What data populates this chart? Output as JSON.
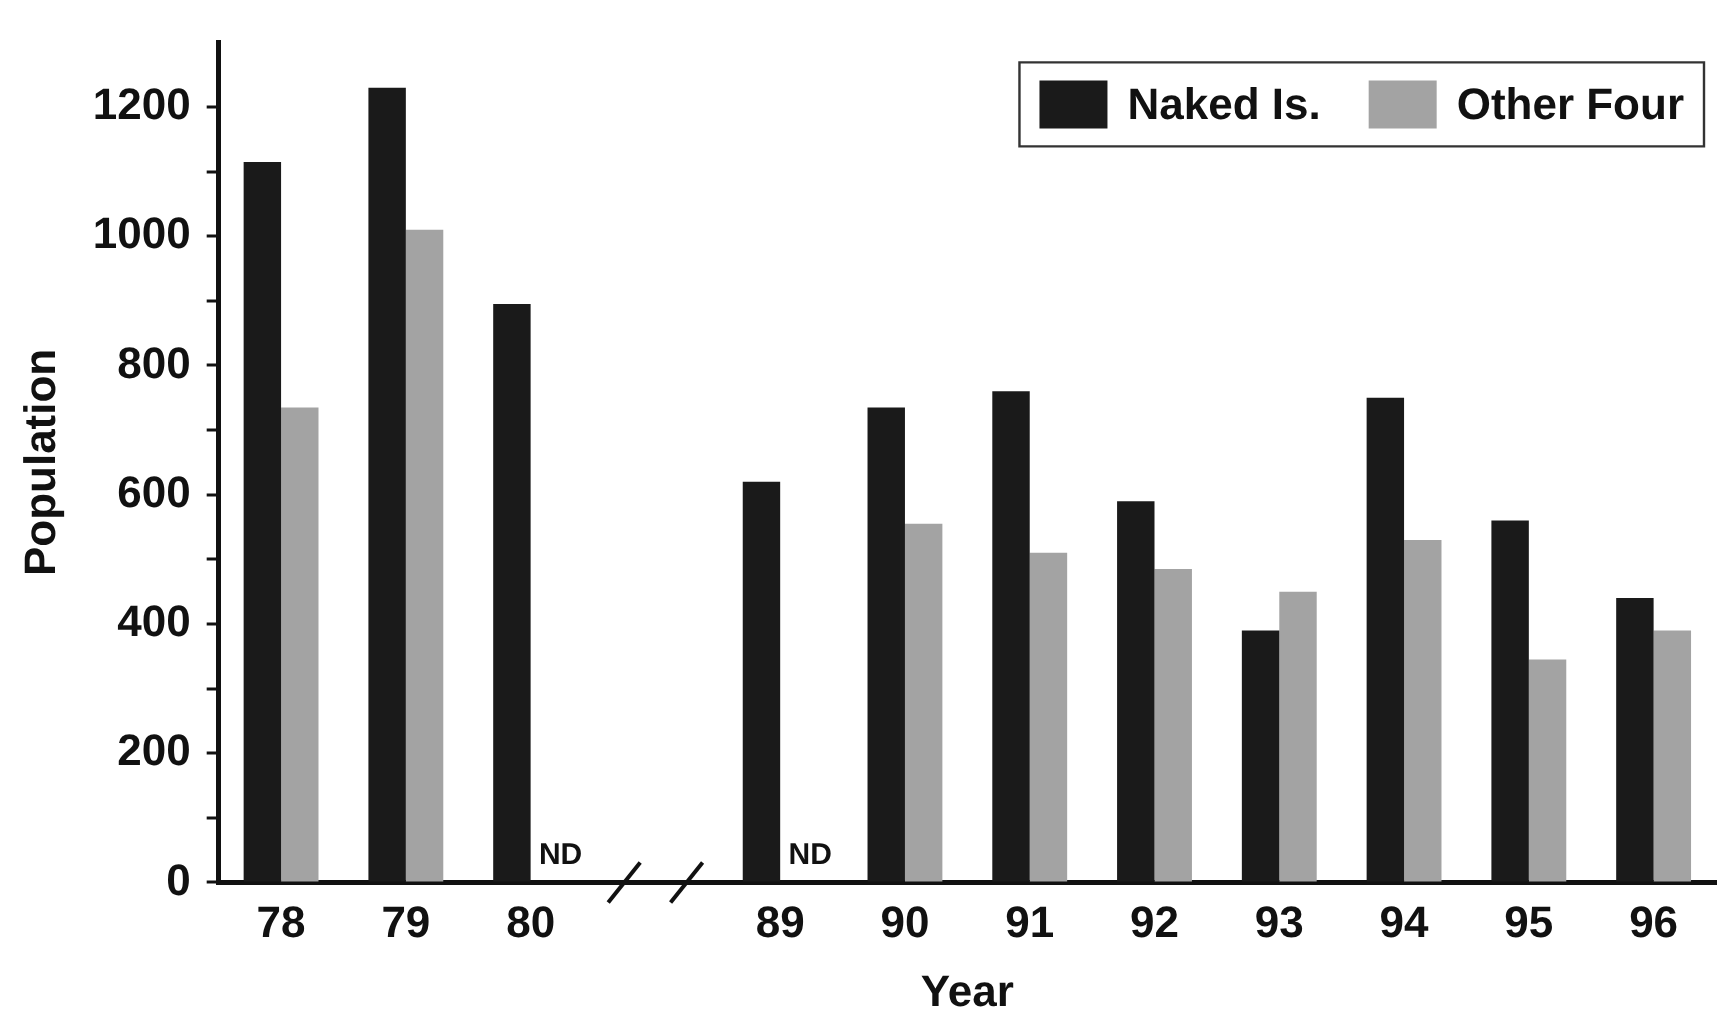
{
  "chart_data": {
    "type": "bar",
    "xlabel": "Year",
    "ylabel": "Population",
    "categories": [
      "78",
      "79",
      "80",
      null,
      "89",
      "90",
      "91",
      "92",
      "93",
      "94",
      "95",
      "96"
    ],
    "series": [
      {
        "name": "Naked Is.",
        "color": "#1a1a1a",
        "values": [
          1115,
          1230,
          895,
          null,
          620,
          735,
          760,
          590,
          390,
          750,
          560,
          440
        ]
      },
      {
        "name": "Other Four",
        "color": "#a3a3a3",
        "values": [
          735,
          1010,
          null,
          null,
          null,
          555,
          510,
          485,
          450,
          530,
          345,
          390
        ]
      }
    ],
    "ylim": [
      0,
      1300
    ],
    "yticks": [
      0,
      {
        "value": 100,
        "label": null
      },
      200,
      {
        "value": 300,
        "label": null
      },
      400,
      {
        "value": 500,
        "label": null
      },
      600,
      {
        "value": 700,
        "label": null
      },
      800,
      {
        "value": 900,
        "label": null
      },
      1000,
      {
        "value": 1100,
        "label": null
      },
      1200
    ],
    "annotations": [
      {
        "text": "ND",
        "x": "80",
        "y": 0
      },
      {
        "text": "ND",
        "x": "89",
        "y": 0
      }
    ],
    "grid": false,
    "legend": "top right"
  }
}
